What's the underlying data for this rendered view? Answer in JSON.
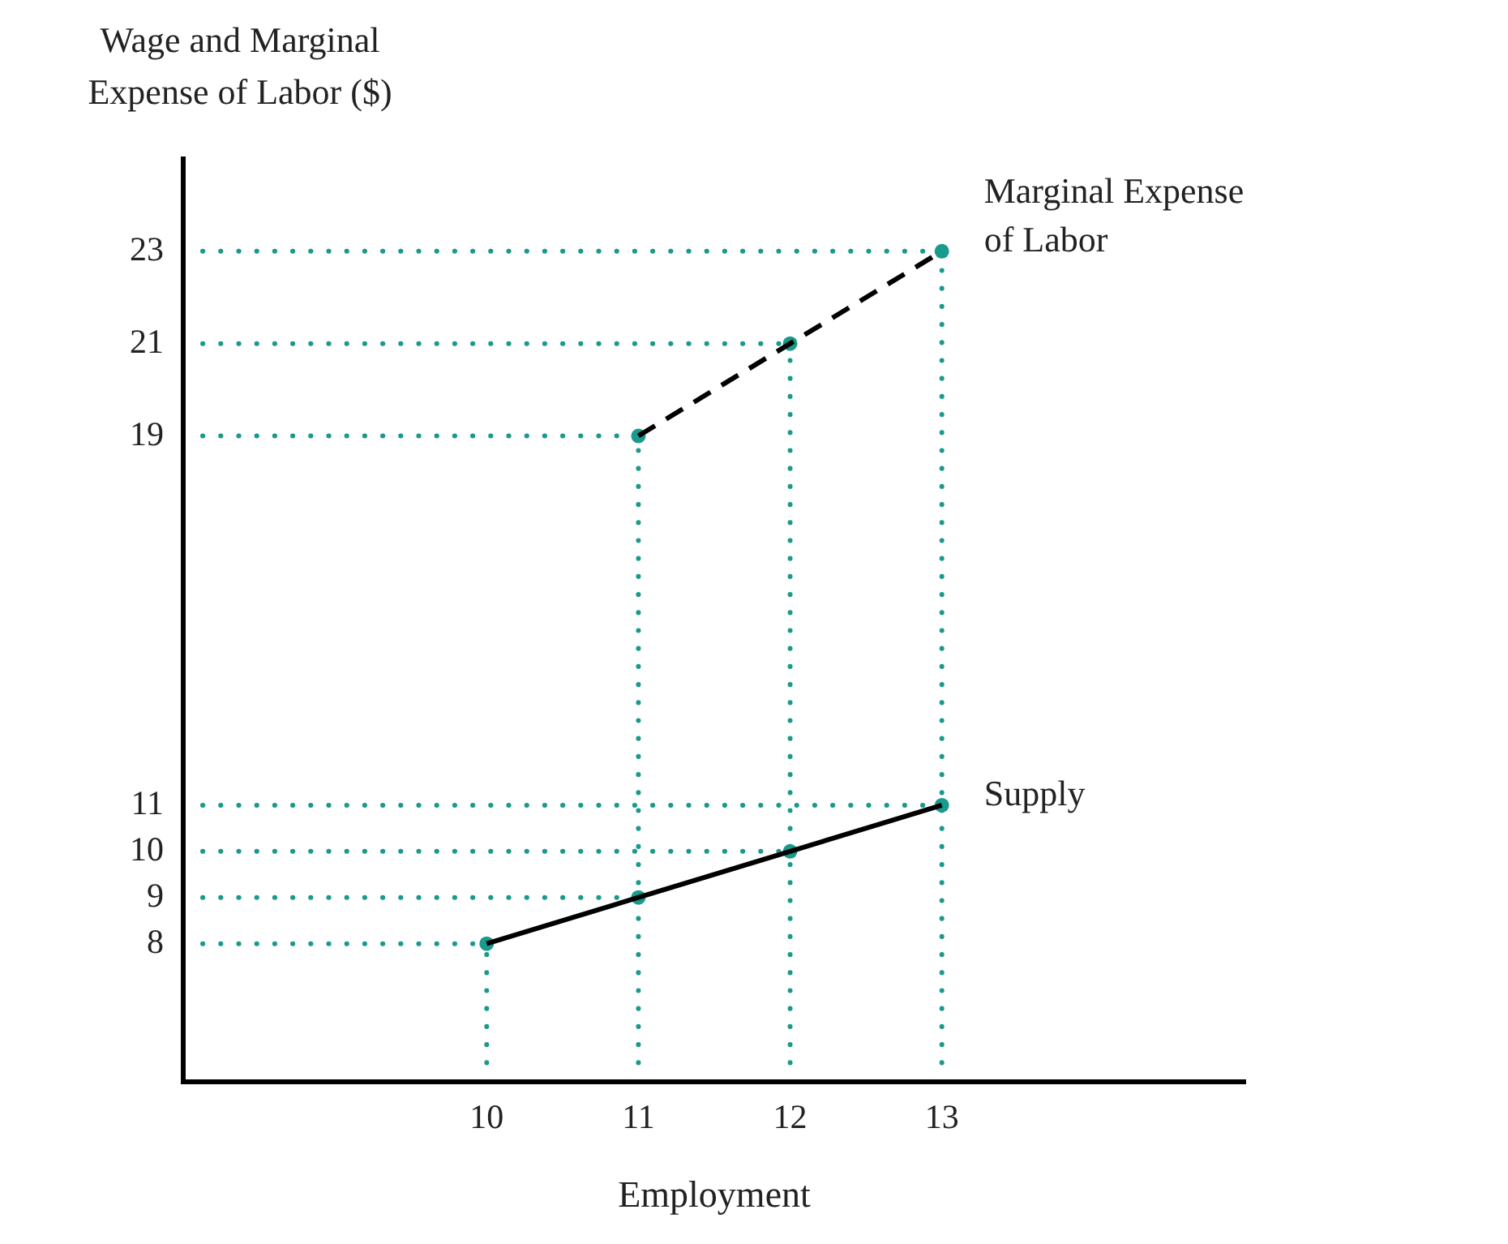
{
  "chart_data": {
    "type": "line",
    "xlabel": "Employment",
    "ylabel": "Wage and Marginal Expense of Labor ($)",
    "xlim": [
      8,
      15
    ],
    "xticks": [
      10,
      11,
      12,
      13
    ],
    "ylim": [
      5,
      25
    ],
    "yticks": [
      8,
      9,
      10,
      11,
      19,
      21,
      23
    ],
    "grid": false,
    "legend": false,
    "ref_lines": [
      {
        "axis": "x",
        "value": 10,
        "color": "#1a9a8c",
        "line_style": "dotted"
      },
      {
        "axis": "x",
        "value": 11,
        "color": "#1a9a8c",
        "line_style": "dotted"
      },
      {
        "axis": "x",
        "value": 12,
        "color": "#1a9a8c",
        "line_style": "dotted"
      },
      {
        "axis": "x",
        "value": 13,
        "color": "#1a9a8c",
        "line_style": "dotted"
      },
      {
        "axis": "y",
        "value": 8,
        "color": "#1a9a8c",
        "line_style": "dotted"
      },
      {
        "axis": "y",
        "value": 9,
        "color": "#1a9a8c",
        "line_style": "dotted"
      },
      {
        "axis": "y",
        "value": 10,
        "color": "#1a9a8c",
        "line_style": "dotted"
      },
      {
        "axis": "y",
        "value": 11,
        "color": "#1a9a8c",
        "line_style": "dotted"
      },
      {
        "axis": "y",
        "value": 19,
        "color": "#1a9a8c",
        "line_style": "dotted"
      },
      {
        "axis": "y",
        "value": 21,
        "color": "#1a9a8c",
        "line_style": "dotted"
      },
      {
        "axis": "y",
        "value": 23,
        "color": "#1a9a8c",
        "line_style": "dotted"
      }
    ],
    "series": [
      {
        "name": "Supply",
        "type": "line",
        "color": "#000000",
        "line_style": "solid",
        "marker": "none",
        "x": [
          10,
          11,
          12,
          13
        ],
        "values": [
          8,
          9,
          10,
          11
        ]
      },
      {
        "name": "Marginal Expense of Labor",
        "type": "line",
        "color": "#000000",
        "line_style": "dashed",
        "marker": "none",
        "x": [
          11,
          12,
          13
        ],
        "values": [
          19,
          21,
          23
        ]
      },
      {
        "type": "scatter",
        "color": "#1a9a8c",
        "marker": "circle",
        "x": [
          10,
          11,
          12,
          13
        ],
        "values": [
          8,
          9,
          10,
          11
        ]
      },
      {
        "type": "scatter",
        "color": "#1a9a8c",
        "marker": "circle",
        "x": [
          11,
          12,
          13
        ],
        "values": [
          19,
          21,
          23
        ]
      }
    ]
  }
}
